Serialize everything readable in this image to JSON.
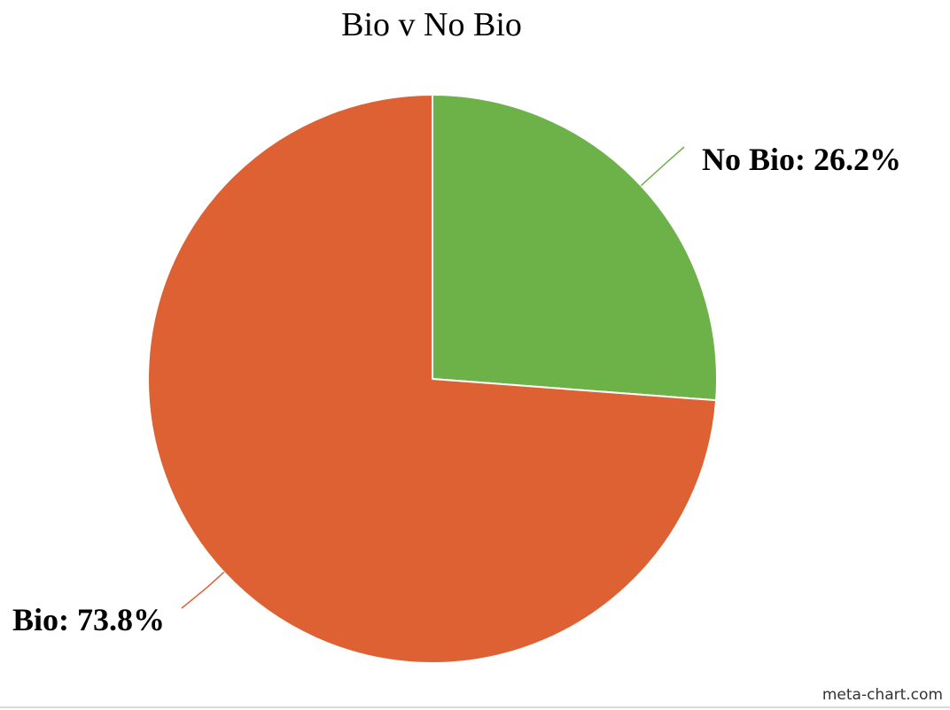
{
  "chart_data": {
    "type": "pie",
    "title": "Bio v No Bio",
    "slices": [
      {
        "label": "No Bio",
        "value": 26.2,
        "display": "No Bio: 26.2%",
        "color": "#6db149"
      },
      {
        "label": "Bio",
        "value": 73.8,
        "display": "Bio: 73.8%",
        "color": "#dd6133"
      }
    ],
    "start_angle_deg": 0,
    "direction": "clockwise",
    "slice_border_color": "#ffffff"
  },
  "credit": "meta-chart.com",
  "footer_line_color": "#d9d9d9"
}
